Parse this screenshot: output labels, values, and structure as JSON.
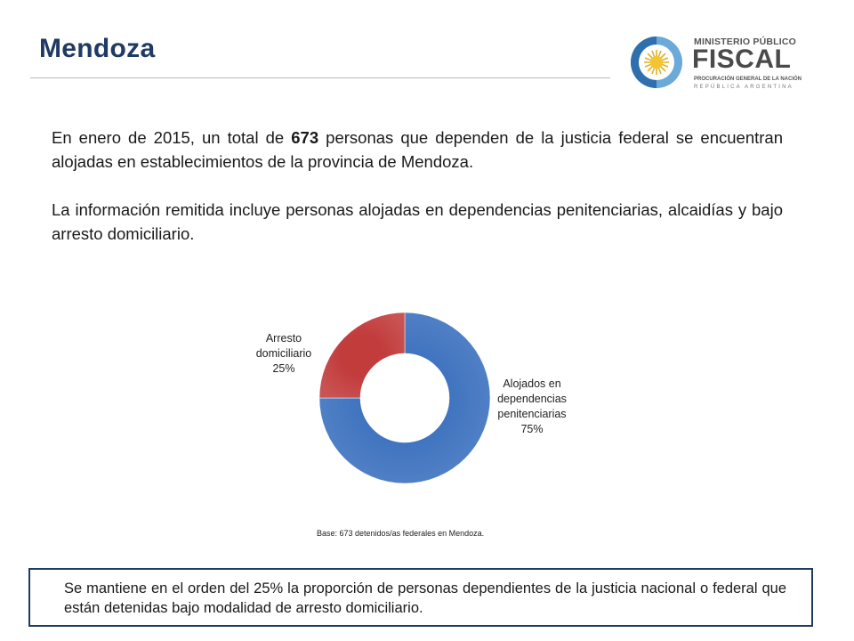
{
  "page": {
    "title": "Mendoza",
    "paragraph1_pre": "En enero de 2015, un total de ",
    "paragraph1_bold": "673",
    "paragraph1_post": " personas que dependen de la justicia federal se encuentran alojadas en establecimientos de la provincia de Mendoza.",
    "paragraph2": "La información remitida incluye personas alojadas en dependencias penitenciarias, alcaidías y bajo arresto domiciliario.",
    "base_note": "Base: 673 detenidos/as federales en Mendoza.",
    "conclusion": "Se mantiene en el orden del 25% la proporción de personas dependientes de la justicia nacional o federal que están detenidas bajo modalidad de arresto domiciliario."
  },
  "logo": {
    "line1": "MINISTERIO PÚBLICO",
    "line2": "FISCAL",
    "line3": "PROCURACIÓN GENERAL DE LA NACIÓN",
    "line4": "REPÚBLICA ARGENTINA"
  },
  "colors": {
    "title": "#1f3a64",
    "slice_blue": "#3f73bf",
    "slice_red": "#c23c3c",
    "box_border": "#1f3a64"
  },
  "chart_data": {
    "type": "pie",
    "variant": "doughnut",
    "categories": [
      "Alojados en dependencias penitenciarias",
      "Arresto domiciliario"
    ],
    "values": [
      75,
      25
    ],
    "value_labels": [
      "75%",
      "25%"
    ],
    "label_lines": [
      [
        "Alojados en",
        "dependencias",
        "penitenciarias",
        "75%"
      ],
      [
        "Arresto",
        "domiciliario",
        "25%"
      ]
    ],
    "title": "",
    "legend": "none"
  }
}
